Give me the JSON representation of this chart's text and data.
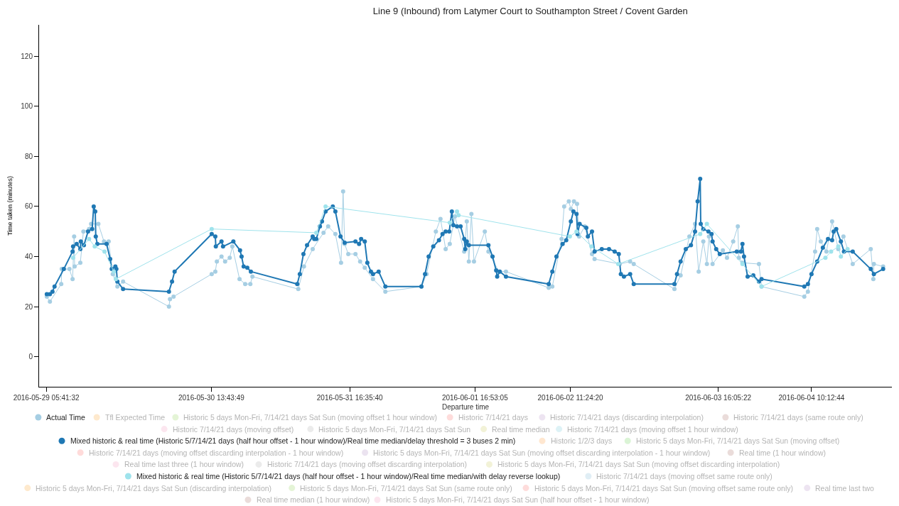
{
  "chart_data": {
    "type": "line",
    "title": "Line 9 (Inbound) from Latymer Court to Southampton Street / Covent Garden",
    "xlabel": "Departure time",
    "ylabel": "Time taken (minutes)",
    "xlim": [
      "2016-05-29T04:18",
      "2016-06-05T01:48"
    ],
    "xticks": [
      {
        "value": "2016-05-29T05:41:32",
        "label": "2016-05-29 05:41:32"
      },
      {
        "value": "2016-05-30T13:43:49",
        "label": "2016-05-30 13:43:49"
      },
      {
        "value": "2016-05-31T16:35:40",
        "label": "2016-05-31 16:35:40"
      },
      {
        "value": "2016-06-01T16:53:05",
        "label": "2016-06-01 16:53:05"
      },
      {
        "value": "2016-06-02T11:24:20",
        "label": "2016-06-02 11:24:20"
      },
      {
        "value": "2016-06-03T16:05:22",
        "label": "2016-06-03 16:05:22"
      },
      {
        "value": "2016-06-04T10:12:44",
        "label": "2016-06-04 10:12:44"
      }
    ],
    "ylim": [
      -12,
      132.5
    ],
    "yticks": [
      0,
      20,
      40,
      60,
      80,
      100,
      120
    ],
    "grid": false,
    "legend": "bottom",
    "marker": "circle",
    "line_style": "solid",
    "series": [
      {
        "name": "Actual Time",
        "color": "#a6cee3",
        "x": [
          "2016-05-29T05:48",
          "2016-05-29T06:24",
          "2016-05-29T08:36",
          "2016-05-29T08:42",
          "2016-05-29T10:12",
          "2016-05-29T10:48",
          "2016-05-29T11:06",
          "2016-05-29T11:12",
          "2016-05-29T12:18",
          "2016-05-29T12:54",
          "2016-05-29T14:00",
          "2016-05-29T14:24",
          "2016-05-29T15:48",
          "2016-05-29T16:54",
          "2016-05-29T17:48",
          "2016-05-29T18:36",
          "2016-05-29T19:30",
          "2016-05-29T20:36",
          "2016-05-30T05:30",
          "2016-05-30T05:42",
          "2016-05-30T06:24",
          "2016-05-30T13:48",
          "2016-05-30T14:30",
          "2016-05-30T14:48",
          "2016-05-30T15:42",
          "2016-05-30T16:24",
          "2016-05-30T17:18",
          "2016-05-30T17:48",
          "2016-05-30T19:12",
          "2016-05-30T20:18",
          "2016-05-30T21:18",
          "2016-05-30T21:42",
          "2016-05-31T06:36",
          "2016-05-31T07:42",
          "2016-05-31T09:24",
          "2016-05-31T11:30",
          "2016-05-31T12:24",
          "2016-05-31T13:48",
          "2016-05-31T14:54",
          "2016-05-31T15:18",
          "2016-05-31T15:36",
          "2016-05-31T16:18",
          "2016-05-31T17:42",
          "2016-05-31T18:36",
          "2016-05-31T19:30",
          "2016-05-31T21:06",
          "2016-05-31T23:30",
          "2016-06-01T06:30",
          "2016-06-01T07:30",
          "2016-06-01T09:18",
          "2016-06-01T10:12",
          "2016-06-01T11:12",
          "2016-06-01T12:00",
          "2016-06-01T13:00",
          "2016-06-01T14:48",
          "2016-06-01T15:18",
          "2016-06-01T15:42",
          "2016-06-01T16:12",
          "2016-06-01T16:42",
          "2016-06-01T18:48",
          "2016-06-01T19:30",
          "2016-06-01T21:30",
          "2016-06-01T22:54",
          "2016-06-02T07:12",
          "2016-06-02T07:54",
          "2016-06-02T09:42",
          "2016-06-02T10:12",
          "2016-06-02T11:06",
          "2016-06-02T11:30",
          "2016-06-02T12:06",
          "2016-06-02T12:42",
          "2016-06-02T13:06",
          "2016-06-02T14:12",
          "2016-06-02T15:36",
          "2016-06-02T16:06",
          "2016-06-02T21:00",
          "2016-06-02T23:00",
          "2016-06-02T23:42",
          "2016-06-03T07:36",
          "2016-06-03T08:48",
          "2016-06-03T10:30",
          "2016-06-03T11:36",
          "2016-06-03T12:18",
          "2016-06-03T13:12",
          "2016-06-03T13:54",
          "2016-06-03T14:18",
          "2016-06-03T15:00",
          "2016-06-03T17:00",
          "2016-06-03T17:48",
          "2016-06-03T19:00",
          "2016-06-03T19:54",
          "2016-06-03T20:06",
          "2016-06-03T20:48",
          "2016-06-04T00:00",
          "2016-06-04T00:30",
          "2016-06-04T08:48",
          "2016-06-04T09:30",
          "2016-06-04T10:54",
          "2016-06-04T11:18",
          "2016-06-04T12:00",
          "2016-06-04T13:06",
          "2016-06-04T14:12",
          "2016-06-04T15:24",
          "2016-06-04T16:24",
          "2016-06-04T18:12",
          "2016-06-04T21:42",
          "2016-06-04T22:12",
          "2016-06-04T22:18",
          "2016-06-05T00:06"
        ],
        "values": [
          24,
          22,
          29,
          35,
          35,
          31,
          48,
          36,
          37.5,
          50,
          51,
          53,
          53,
          46,
          46,
          33,
          28,
          30,
          20,
          23,
          24,
          33,
          34,
          38,
          40,
          38,
          39.5,
          44,
          31,
          29,
          29,
          32,
          27,
          36,
          43,
          49.5,
          52,
          49,
          37.5,
          66,
          45,
          41,
          41,
          38,
          35.5,
          31,
          26,
          28,
          33,
          50,
          55,
          43,
          45,
          56,
          42,
          54,
          38,
          57,
          38,
          50,
          42,
          34,
          34,
          27.5,
          28,
          47,
          60,
          62,
          59,
          62,
          61,
          48,
          52,
          41,
          39,
          37,
          38,
          37,
          27,
          32.5,
          48,
          53,
          34,
          46,
          37,
          48,
          37,
          42.5,
          39.5,
          46,
          52,
          39.5,
          37.5,
          37,
          28,
          24,
          26,
          42,
          51,
          46,
          42,
          54,
          43,
          48,
          37,
          43,
          31,
          37,
          36
        ]
      },
      {
        "name": "Tfl Expected Time",
        "color": "#fdbf6f"
      },
      {
        "name": "Historic 5 days Mon-Fri, 7/14/21 days Sat Sun (moving offset 1 hour window)",
        "color": "#b2df8a"
      },
      {
        "name": "Historic 7/14/21 days",
        "color": "#fb9a99"
      },
      {
        "name": "Historic 7/14/21 days (discarding interpolation)",
        "color": "#cab2d6"
      },
      {
        "name": "Historic 7/14/21 days (same route only)",
        "color": "#c49c94"
      },
      {
        "name": "Historic 7/14/21 days (moving offset)",
        "color": "#f7b6d2"
      },
      {
        "name": "Historic 5 days Mon-Fri, 7/14/21 days Sat Sun",
        "color": "#c7c7c7"
      },
      {
        "name": "Real time median",
        "color": "#dbdb8d"
      },
      {
        "name": "Historic 7/14/21 days (moving offset 1 hour window)",
        "color": "#9edae5"
      },
      {
        "name": "Mixed historic & real time (Historic 5/7/14/21 days (half hour offset - 1 hour window)/Real time median/delay threshold = 3 buses 2 min)",
        "color": "#1f78b4",
        "x": [
          "2016-05-29T05:48",
          "2016-05-29T06:24",
          "2016-05-29T06:54",
          "2016-05-29T07:18",
          "2016-05-29T09:06",
          "2016-05-29T10:48",
          "2016-05-29T10:54",
          "2016-05-29T11:36",
          "2016-05-29T12:18",
          "2016-05-29T12:24",
          "2016-05-29T13:00",
          "2016-05-29T13:48",
          "2016-05-29T14:36",
          "2016-05-29T14:54",
          "2016-05-29T15:12",
          "2016-05-29T15:18",
          "2016-05-29T15:36",
          "2016-05-29T17:24",
          "2016-05-29T18:06",
          "2016-05-29T18:24",
          "2016-05-29T19:06",
          "2016-05-29T19:18",
          "2016-05-29T19:30",
          "2016-05-29T20:36",
          "2016-05-30T05:30",
          "2016-05-30T06:06",
          "2016-05-30T06:36",
          "2016-05-30T13:48",
          "2016-05-30T14:30",
          "2016-05-30T14:36",
          "2016-05-30T15:42",
          "2016-05-30T16:00",
          "2016-05-30T18:00",
          "2016-05-30T19:18",
          "2016-05-30T19:36",
          "2016-05-30T20:00",
          "2016-05-30T20:42",
          "2016-05-30T21:24",
          "2016-05-31T06:24",
          "2016-05-31T06:54",
          "2016-05-31T07:36",
          "2016-05-31T08:18",
          "2016-05-31T09:24",
          "2016-05-31T09:42",
          "2016-05-31T10:06",
          "2016-05-31T10:48",
          "2016-05-31T11:12",
          "2016-05-31T11:54",
          "2016-05-31T13:18",
          "2016-05-31T13:48",
          "2016-05-31T14:48",
          "2016-05-31T15:36",
          "2016-05-31T17:42",
          "2016-05-31T18:24",
          "2016-05-31T18:48",
          "2016-05-31T19:30",
          "2016-05-31T20:00",
          "2016-05-31T20:42",
          "2016-05-31T21:06",
          "2016-05-31T22:12",
          "2016-05-31T23:30",
          "2016-06-01T06:30",
          "2016-06-01T07:12",
          "2016-06-01T07:54",
          "2016-06-01T08:48",
          "2016-06-01T09:54",
          "2016-06-01T10:36",
          "2016-06-01T11:12",
          "2016-06-01T11:54",
          "2016-06-01T12:24",
          "2016-06-01T12:42",
          "2016-06-01T13:24",
          "2016-06-01T14:06",
          "2016-06-01T14:48",
          "2016-06-01T15:00",
          "2016-06-01T15:18",
          "2016-06-01T15:42",
          "2016-06-01T19:30",
          "2016-06-01T20:18",
          "2016-06-01T21:00",
          "2016-06-01T21:12",
          "2016-06-01T21:42",
          "2016-06-01T22:54",
          "2016-06-02T07:12",
          "2016-06-02T07:54",
          "2016-06-02T08:42",
          "2016-06-02T09:54",
          "2016-06-02T10:36",
          "2016-06-02T11:30",
          "2016-06-02T12:00",
          "2016-06-02T12:36",
          "2016-06-02T12:48",
          "2016-06-02T13:12",
          "2016-06-02T14:30",
          "2016-06-02T14:48",
          "2016-06-02T15:36",
          "2016-06-02T16:06",
          "2016-06-02T17:30",
          "2016-06-02T18:54",
          "2016-06-02T20:00",
          "2016-06-02T20:48",
          "2016-06-02T21:12",
          "2016-06-02T21:48",
          "2016-06-02T23:00",
          "2016-06-02T23:42",
          "2016-06-03T07:36",
          "2016-06-03T08:06",
          "2016-06-03T08:48",
          "2016-06-03T09:48",
          "2016-06-03T10:48",
          "2016-06-03T11:36",
          "2016-06-03T12:06",
          "2016-06-03T12:36",
          "2016-06-03T12:42",
          "2016-06-03T13:12",
          "2016-06-03T14:12",
          "2016-06-03T14:48",
          "2016-06-03T15:00",
          "2016-06-03T15:42",
          "2016-06-03T16:24",
          "2016-06-03T19:42",
          "2016-06-03T20:30",
          "2016-06-03T20:48",
          "2016-06-03T21:06",
          "2016-06-03T21:48",
          "2016-06-03T22:54",
          "2016-06-04T00:00",
          "2016-06-04T00:30",
          "2016-06-04T08:48",
          "2016-06-04T09:30",
          "2016-06-04T10:12",
          "2016-06-04T11:18",
          "2016-06-04T12:24",
          "2016-06-04T13:24",
          "2016-06-04T14:12",
          "2016-06-04T14:30",
          "2016-06-04T15:00",
          "2016-06-04T15:54",
          "2016-06-04T16:30",
          "2016-06-04T18:12",
          "2016-06-04T21:42",
          "2016-06-04T22:18",
          "2016-06-05T00:06"
        ],
        "values": [
          25,
          25,
          26,
          28,
          35,
          42,
          44,
          45,
          43,
          46,
          44.5,
          50,
          51,
          60,
          58,
          48,
          45,
          45,
          39,
          35,
          36,
          35,
          30,
          27,
          26,
          30,
          34,
          49,
          48,
          44,
          46,
          44,
          46,
          42.5,
          40,
          36,
          35.5,
          34,
          29,
          33,
          41,
          44.5,
          48,
          47,
          47,
          52,
          54,
          58,
          60,
          58,
          48,
          45.5,
          46,
          45,
          47,
          46,
          37.5,
          34,
          33,
          34,
          28,
          28,
          33,
          40,
          44,
          46.5,
          49,
          50,
          50,
          58,
          52.5,
          52,
          52,
          47,
          43,
          46,
          44.5,
          44.5,
          40,
          34.5,
          32,
          34,
          32,
          29,
          34,
          40,
          45,
          46.5,
          54,
          58,
          57,
          49,
          53,
          51.5,
          48,
          50,
          42,
          43,
          43,
          42,
          41,
          33,
          32,
          33,
          29,
          29,
          33,
          38,
          43,
          44.5,
          50,
          62,
          71,
          53,
          51,
          50,
          49,
          46,
          43,
          41,
          42,
          42,
          45,
          40,
          32,
          32.5,
          30,
          31,
          28,
          29,
          33,
          38,
          43.5,
          47,
          46.5,
          50,
          51,
          46,
          42,
          42,
          35,
          33,
          35
        ]
      },
      {
        "name": "Historic 1/2/3 days",
        "color": "#ffbb78"
      },
      {
        "name": "Historic 5 days Mon-Fri, 7/14/21 days Sat Sun (moving offset)",
        "color": "#98df8a"
      },
      {
        "name": "Historic 7/14/21 days (moving offset discarding interpolation - 1 hour window)",
        "color": "#ff9896"
      },
      {
        "name": "Historic 5 days Mon-Fri, 7/14/21 days Sat Sun (moving offset discarding interpolation - 1 hour window)",
        "color": "#c5b0d5"
      },
      {
        "name": "Real time (1 hour window)",
        "color": "#c49c94"
      },
      {
        "name": "Real time last three (1 hour window)",
        "color": "#f7b6d2"
      },
      {
        "name": "Historic 7/14/21 days (moving offset discarding interpolation)",
        "color": "#c7c7c7"
      },
      {
        "name": "Historic 5 days Mon-Fri, 7/14/21 days Sat Sun (moving offset discarding interpolation)",
        "color": "#dbdb8d"
      },
      {
        "name": "Mixed historic & real time (Historic 5/7/14/21 days (half hour offset - 1 hour window)/Real time median/with delay reverse lookup)",
        "color": "#9fe3ec",
        "x": [
          "2016-05-29T10:54",
          "2016-05-29T14:00",
          "2016-05-29T15:06",
          "2016-05-29T17:00",
          "2016-05-29T18:48",
          "2016-05-29T19:12",
          "2016-05-30T13:48",
          "2016-05-31T10:06",
          "2016-05-31T11:54",
          "2016-06-01T12:00",
          "2016-06-01T13:24",
          "2016-06-01T13:42",
          "2016-06-02T11:18",
          "2016-06-02T12:36",
          "2016-06-02T15:30",
          "2016-06-02T20:42",
          "2016-06-03T12:36",
          "2016-06-03T13:54",
          "2016-06-03T20:48",
          "2016-06-04T00:30",
          "2016-06-04T12:54",
          "2016-06-04T14:00",
          "2016-06-04T15:24",
          "2016-06-04T15:54",
          "2016-06-04T17:12"
        ],
        "values": [
          39.5,
          47,
          44,
          42,
          34,
          31,
          51,
          49.5,
          60,
          53.5,
          58,
          56.5,
          48,
          50,
          44,
          37,
          49,
          53,
          37,
          28,
          39.5,
          42,
          44,
          40,
          43
        ]
      },
      {
        "name": "Historic 7/14/21 days (moving offset same route only)",
        "color": "#a6cee3"
      },
      {
        "name": "Historic 5 days Mon-Fri, 7/14/21 days Sat Sun (discarding interpolation)",
        "color": "#fdbf6f"
      },
      {
        "name": "Historic 5 days Mon-Fri, 7/14/21 days Sat Sun (same route only)",
        "color": "#b2df8a"
      },
      {
        "name": "Historic 5 days Mon-Fri, 7/14/21 days Sat Sun (moving offset same route only)",
        "color": "#fb9a99"
      },
      {
        "name": "Real time last two",
        "color": "#cab2d6"
      },
      {
        "name": "Real time median (1 hour window)",
        "color": "#c49c94"
      },
      {
        "name": "Historic 5 days Mon-Fri, 7/14/21 days Sat Sun (half hour offset - 1 hour window)",
        "color": "#f7b6d2"
      }
    ]
  }
}
